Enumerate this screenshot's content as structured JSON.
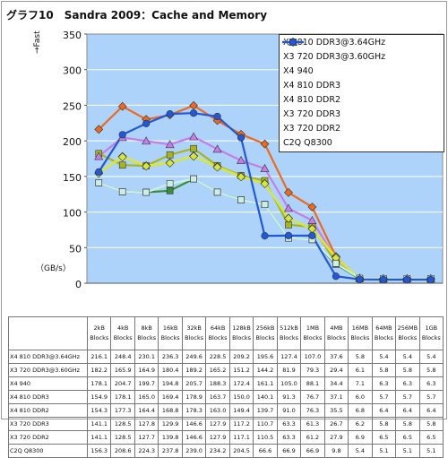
{
  "title": "グラフ10　Sandra 2009：Cache and Memory",
  "chart_data": {
    "type": "line",
    "ylabel": "→Fast",
    "unit_label": "（GB/s）",
    "ylim": [
      0,
      350
    ],
    "yticks": [
      0,
      50,
      100,
      150,
      200,
      250,
      300,
      350
    ],
    "categories": [
      "2kB Blocks",
      "4kB Blocks",
      "8kB Blocks",
      "16kB Blocks",
      "32kB Blocks",
      "64kB Blocks",
      "128kB Blocks",
      "256kB Blocks",
      "512kB Blocks",
      "1MB Blocks",
      "4MB Blocks",
      "16MB Blocks",
      "64MB Blocks",
      "256MB Blocks",
      "1GB Blocks"
    ],
    "category_lines": [
      [
        "2kB",
        "Blocks"
      ],
      [
        "4kB",
        "Blocks"
      ],
      [
        "8kB",
        "Blocks"
      ],
      [
        "16kB",
        "Blocks"
      ],
      [
        "32kB",
        "Blocks"
      ],
      [
        "64kB",
        "Blocks"
      ],
      [
        "128kB",
        "Blocks"
      ],
      [
        "256kB",
        "Blocks"
      ],
      [
        "512kB",
        "Blocks"
      ],
      [
        "1MB",
        "Blocks"
      ],
      [
        "4MB",
        "Blocks"
      ],
      [
        "16MB",
        "Blocks"
      ],
      [
        "64MB",
        "Blocks"
      ],
      [
        "256MB",
        "Blocks"
      ],
      [
        "1GB",
        "Blocks"
      ]
    ],
    "grid": true,
    "legend_position": "top-right",
    "plot_background": "#aed3fb",
    "series": [
      {
        "name": "X4 810 DDR3@3.64GHz",
        "color": "#ea6a1f",
        "marker": "diamond",
        "values": [
          216.1,
          248.4,
          230.1,
          236.3,
          249.6,
          228.5,
          209.2,
          195.6,
          127.4,
          107.0,
          37.6,
          5.8,
          5.4,
          5.4,
          5.4
        ]
      },
      {
        "name": "X3 720 DDR3@3.60GHz",
        "color": "#a6b520",
        "marker": "square",
        "values": [
          182.2,
          165.9,
          164.9,
          180.4,
          189.2,
          165.2,
          151.2,
          144.2,
          81.9,
          79.3,
          29.4,
          6.1,
          5.8,
          5.8,
          5.8
        ]
      },
      {
        "name": "X4 940",
        "color": "#c57ee8",
        "marker": "triangle",
        "values": [
          178.1,
          204.7,
          199.7,
          194.8,
          205.7,
          188.3,
          172.4,
          161.1,
          105.0,
          88.1,
          34.4,
          7.1,
          6.3,
          6.3,
          6.3
        ]
      },
      {
        "name": "X4 810 DDR3",
        "color": "#f3e83a",
        "marker": "diamond",
        "values": [
          154.9,
          178.1,
          165.0,
          169.4,
          178.9,
          163.7,
          150.0,
          140.1,
          91.3,
          76.7,
          37.1,
          6.0,
          5.7,
          5.7,
          5.7
        ]
      },
      {
        "name": "X4 810 DDR2",
        "color": "#d6e640",
        "marker": "diamond",
        "values": [
          154.3,
          177.3,
          164.4,
          168.8,
          178.3,
          163.0,
          149.4,
          139.7,
          91.0,
          76.3,
          35.5,
          6.8,
          6.4,
          6.4,
          6.4
        ]
      },
      {
        "name": "X3 720 DDR3",
        "color": "#3a8d3a",
        "marker": "square",
        "values": [
          141.1,
          128.5,
          127.8,
          129.9,
          146.6,
          127.9,
          117.2,
          110.7,
          63.3,
          61.3,
          26.7,
          6.2,
          5.8,
          5.8,
          5.8
        ]
      },
      {
        "name": "X3 720 DDR2",
        "color": "#cdeee4",
        "marker": "square",
        "values": [
          141.1,
          128.5,
          127.7,
          139.8,
          146.6,
          127.9,
          117.1,
          110.5,
          63.3,
          61.2,
          27.9,
          6.9,
          6.5,
          6.5,
          6.5
        ]
      },
      {
        "name": "C2Q Q8300",
        "color": "#2258d8",
        "marker": "circle",
        "values": [
          156.3,
          208.6,
          224.3,
          237.8,
          239.0,
          234.2,
          204.5,
          66.6,
          66.9,
          66.9,
          9.8,
          5.4,
          5.1,
          5.1,
          5.1
        ]
      }
    ],
    "table_rows": [
      {
        "label": "X4 810 DDR3@3.64GHz",
        "cells": [
          "216.1",
          "248.4",
          "230.1",
          "236.3",
          "249.6",
          "228.5",
          "209.2",
          "195.6",
          "127.4",
          "107.0",
          "37.6",
          "5.8",
          "5.4",
          "5.4",
          "5.4"
        ]
      },
      {
        "label": "X3 720 DDR3@3.60GHz",
        "cells": [
          "182.2",
          "165.9",
          "164.9",
          "180.4",
          "189.2",
          "165.2",
          "151.2",
          "144.2",
          "81.9",
          "79.3",
          "29.4",
          "6.1",
          "5.8",
          "5.8",
          "5.8"
        ]
      },
      {
        "label": "X4 940",
        "cells": [
          "178.1",
          "204.7",
          "199.7",
          "194.8",
          "205.7",
          "188.3",
          "172.4",
          "161.1",
          "105.0",
          "88.1",
          "34.4",
          "7.1",
          "6.3",
          "6.3",
          "6.3"
        ]
      },
      {
        "label": "X4 810 DDR3",
        "cells": [
          "154.9",
          "178.1",
          "165.0",
          "169.4",
          "178.9",
          "163.7",
          "150.0",
          "140.1",
          "91.3",
          "76.7",
          "37.1",
          "6.0",
          "5.7",
          "5.7",
          "5.7"
        ]
      },
      {
        "label": "X4 810 DDR2",
        "cells": [
          "154.3",
          "177.3",
          "164.4",
          "168.8",
          "178.3",
          "163.0",
          "149.4",
          "139.7",
          "91.0",
          "76.3",
          "35.5",
          "6.8",
          "6.4",
          "6.4",
          "6.4"
        ]
      },
      {
        "label": "X3 720 DDR3",
        "cells": [
          "141.1",
          "128.5",
          "127.8",
          "129.9",
          "146.6",
          "127.9",
          "117.2",
          "110.7",
          "63.3",
          "61.3",
          "26.7",
          "6.2",
          "5.8",
          "5.8",
          "5.8"
        ]
      },
      {
        "label": "X3 720 DDR2",
        "cells": [
          "141.1",
          "128.5",
          "127.7",
          "139.8",
          "146.6",
          "127.9",
          "117.1",
          "110.5",
          "63.3",
          "61.2",
          "27.9",
          "6.9",
          "6.5",
          "6.5",
          "6.5"
        ]
      },
      {
        "label": "C2Q Q8300",
        "cells": [
          "156.3",
          "208.6",
          "224.3",
          "237.8",
          "239.0",
          "234.2",
          "204.5",
          "66.6",
          "66.9",
          "66.9",
          "9.8",
          "5.4",
          "5.1",
          "5.1",
          "5.1"
        ]
      }
    ]
  }
}
